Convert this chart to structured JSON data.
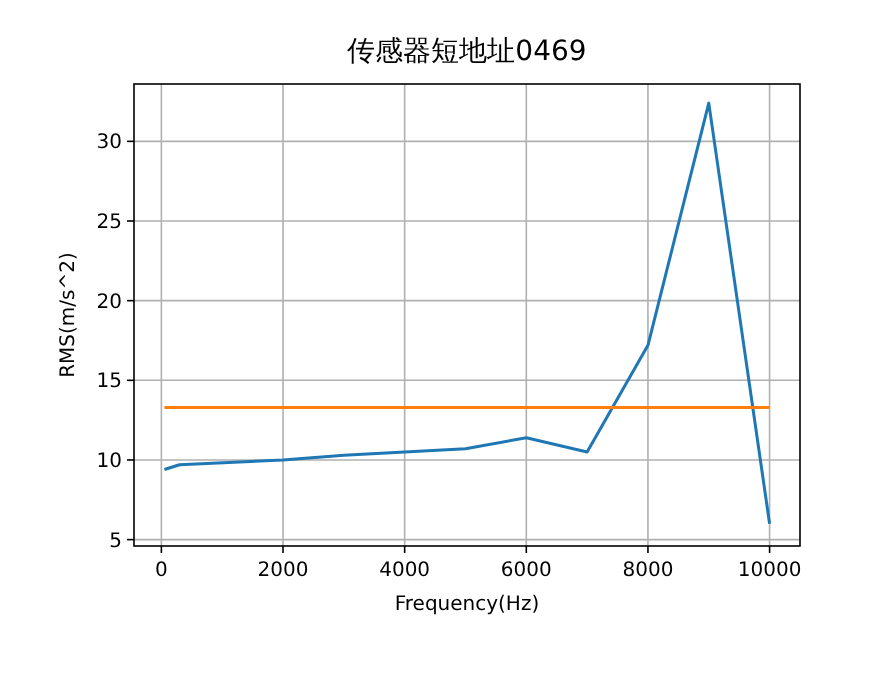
{
  "chart_data": {
    "type": "line",
    "title": "传感器短地址0469",
    "xlabel": "Frequency(Hz)",
    "ylabel": "RMS(m/s^2)",
    "xlim": [
      -450,
      10500
    ],
    "ylim": [
      4.6,
      33.6
    ],
    "xticks": [
      0,
      2000,
      4000,
      6000,
      8000,
      10000
    ],
    "yticks": [
      5,
      10,
      15,
      20,
      25,
      30
    ],
    "grid": true,
    "marker": "none",
    "line_style": "solid",
    "series": [
      {
        "color": "#1f77b4",
        "x": [
          50,
          300,
          2000,
          3000,
          4000,
          5000,
          6000,
          7000,
          8000,
          9000,
          10000
        ],
        "values": [
          9.4,
          9.7,
          10.0,
          10.3,
          10.5,
          10.7,
          11.4,
          10.5,
          17.2,
          32.4,
          6.0
        ]
      },
      {
        "color": "#ff7f0e",
        "x": [
          50,
          10000
        ],
        "values": [
          13.3,
          13.3
        ]
      }
    ]
  }
}
